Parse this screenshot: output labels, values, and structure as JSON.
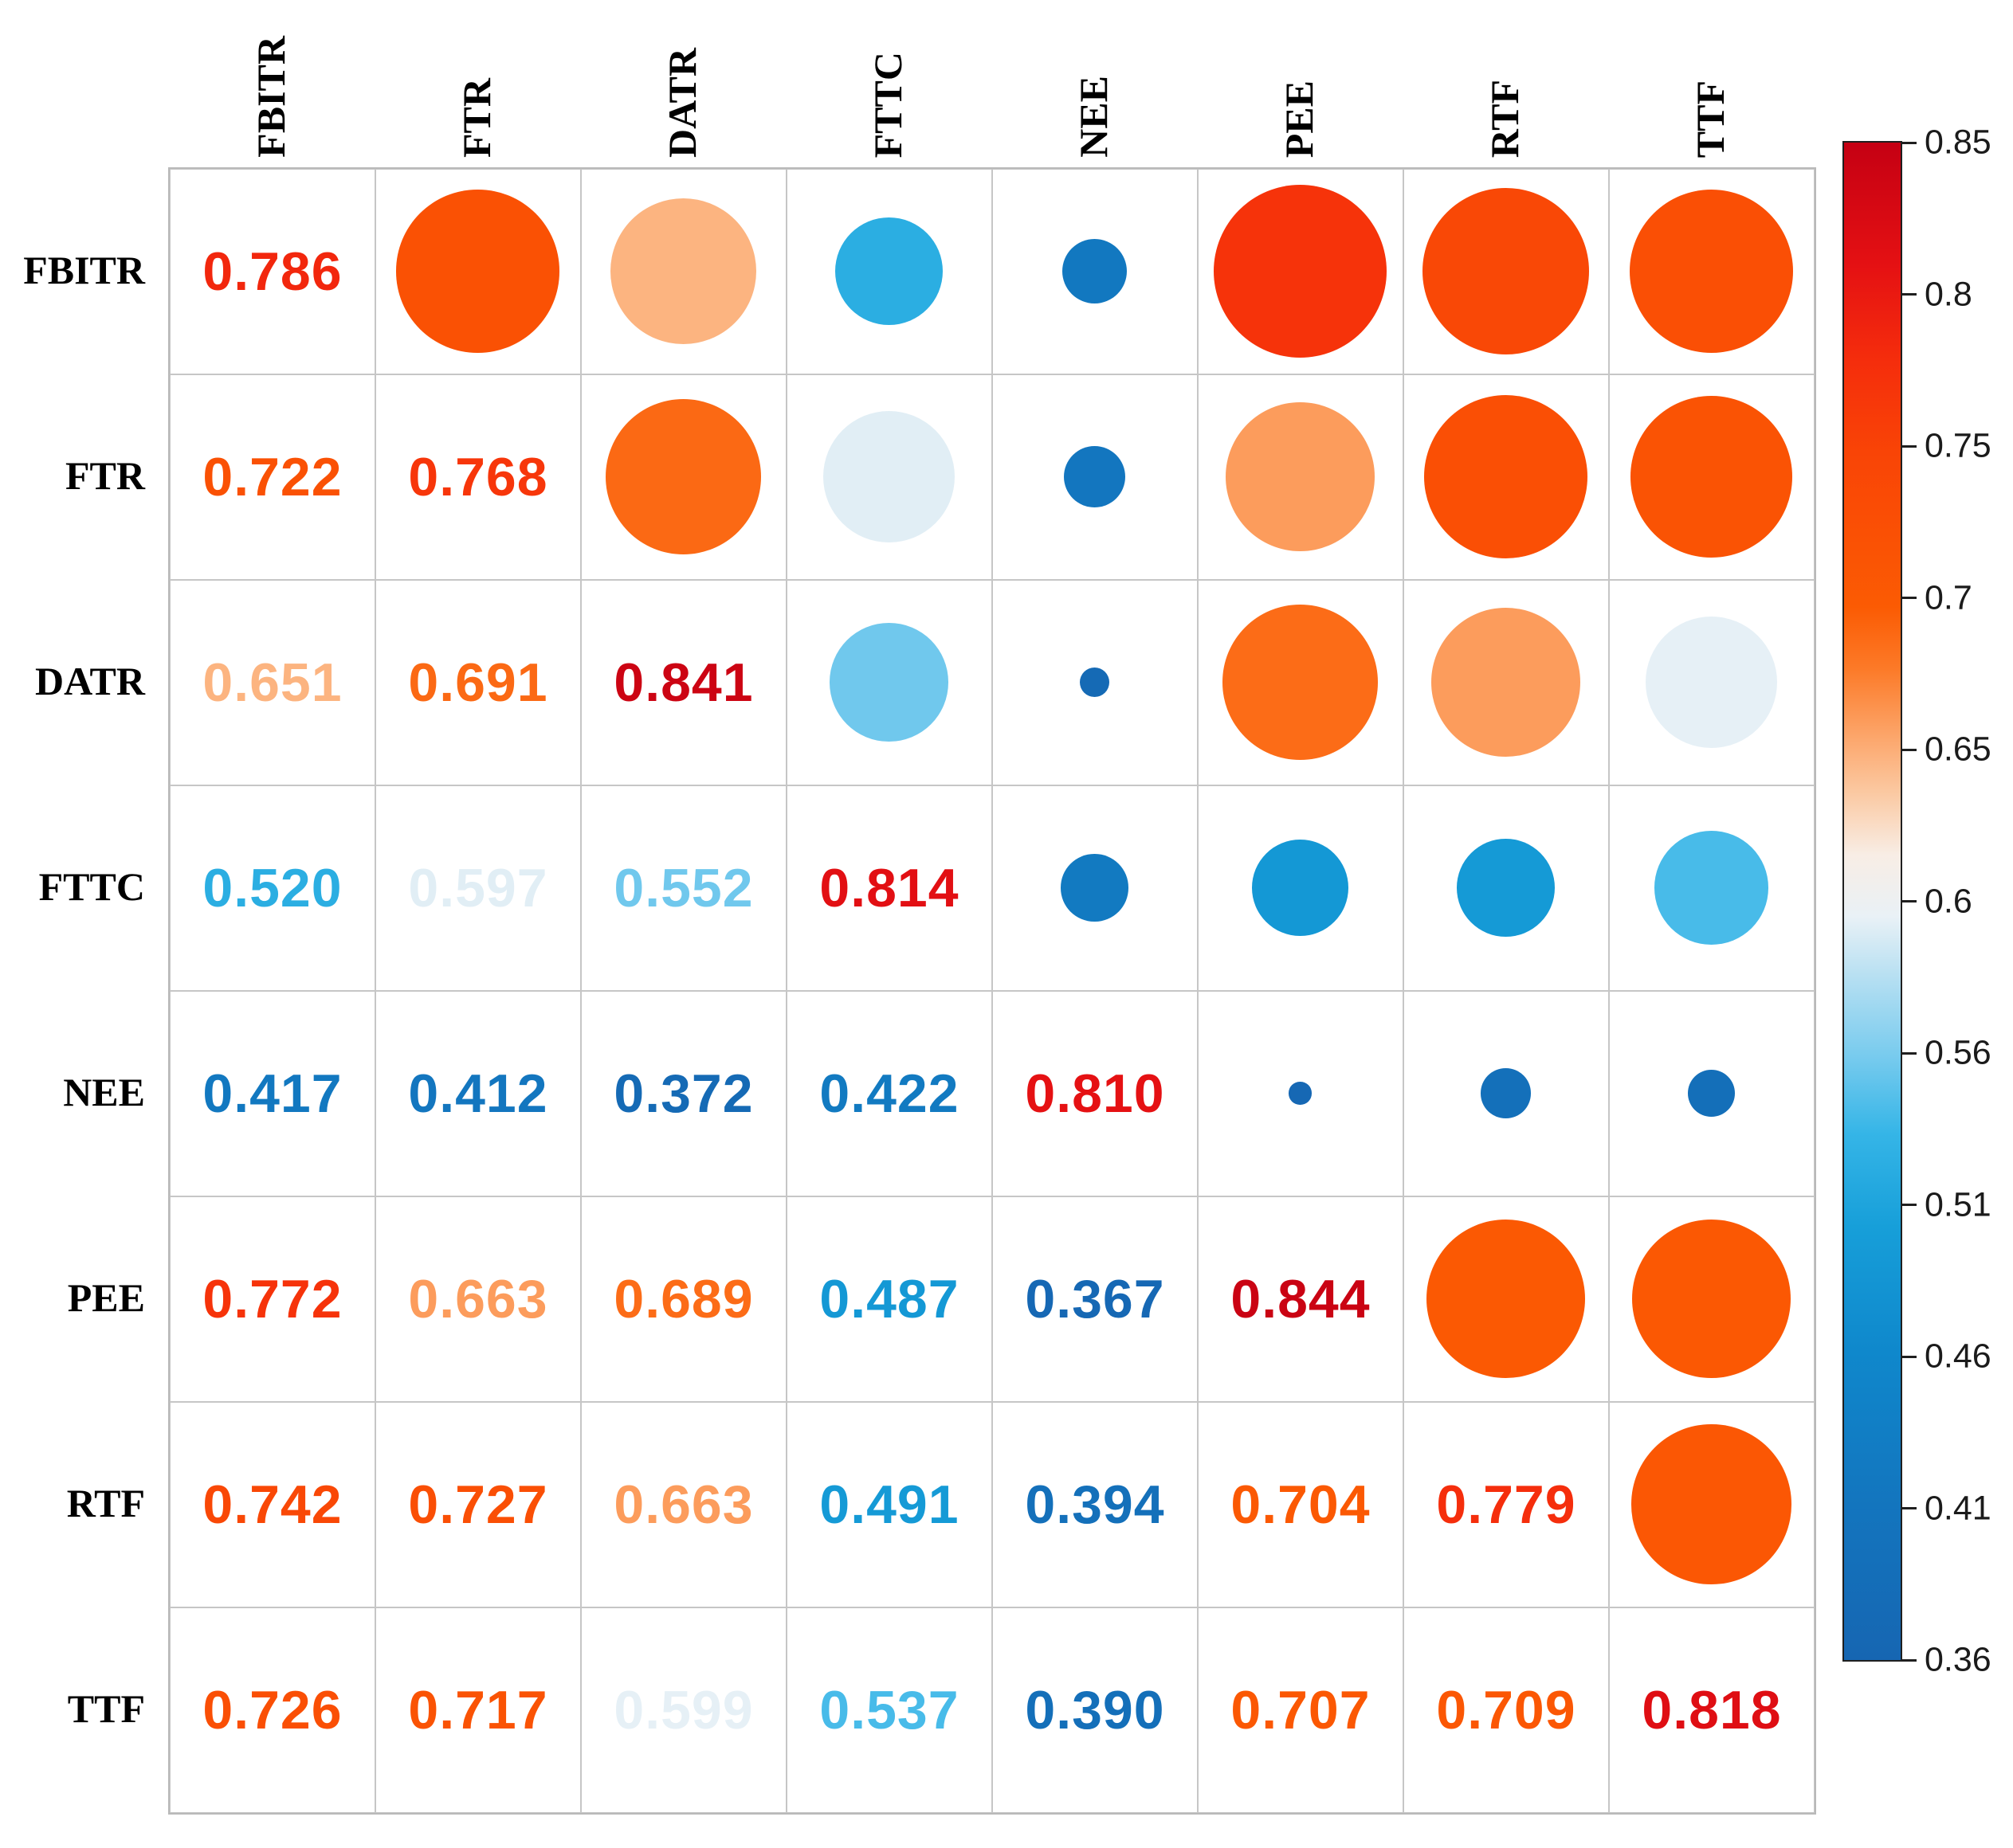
{
  "chart_data": {
    "type": "heatmap",
    "subtype": "correlation-matrix-bubble-plot",
    "title": "",
    "variables": [
      "FBITR",
      "FTR",
      "DATR",
      "FTTC",
      "NEE",
      "PEE",
      "RTF",
      "TTF"
    ],
    "matrix": [
      [
        0.786,
        0.722,
        0.651,
        0.52,
        0.417,
        0.772,
        0.742,
        0.726
      ],
      [
        0.722,
        0.768,
        0.691,
        0.597,
        0.412,
        0.663,
        0.727,
        0.717
      ],
      [
        0.651,
        0.691,
        0.841,
        0.552,
        0.372,
        0.689,
        0.663,
        0.599
      ],
      [
        0.52,
        0.597,
        0.552,
        0.814,
        0.422,
        0.487,
        0.491,
        0.537
      ],
      [
        0.417,
        0.412,
        0.372,
        0.422,
        0.81,
        0.367,
        0.394,
        0.39
      ],
      [
        0.772,
        0.663,
        0.689,
        0.487,
        0.367,
        0.844,
        0.704,
        0.707
      ],
      [
        0.742,
        0.727,
        0.663,
        0.491,
        0.394,
        0.704,
        0.779,
        0.709
      ],
      [
        0.726,
        0.717,
        0.599,
        0.537,
        0.39,
        0.707,
        0.709,
        0.818
      ]
    ],
    "display": {
      "lower_triangle": "numbers",
      "diagonal": "numbers",
      "upper_triangle": "circles",
      "value_format": "3-decimals",
      "circle_size_rule": "diameter proportional to sqrt((value-0.36)/0.49), max 92% of cell"
    },
    "grid": {
      "rows": 8,
      "cols": 8,
      "line_color": "#c6c6c6",
      "background": "#ffffff"
    },
    "colorbar": {
      "min": 0.36,
      "max": 0.85,
      "tick_labels": [
        "0.85",
        "0.8",
        "0.75",
        "0.7",
        "0.65",
        "0.6",
        "0.56",
        "0.51",
        "0.46",
        "0.41",
        "0.36"
      ],
      "position": "right"
    },
    "colormap_stops": [
      [
        0.36,
        "#1666B2"
      ],
      [
        0.41,
        "#1375BE"
      ],
      [
        0.46,
        "#0F88CC"
      ],
      [
        0.5,
        "#179FD9"
      ],
      [
        0.53,
        "#35B5E7"
      ],
      [
        0.555,
        "#78CBEE"
      ],
      [
        0.58,
        "#B5DFF2"
      ],
      [
        0.6,
        "#E9F1F6"
      ],
      [
        0.62,
        "#F8EDE5"
      ],
      [
        0.64,
        "#FBC9A2"
      ],
      [
        0.66,
        "#FCA265"
      ],
      [
        0.68,
        "#FC7A28"
      ],
      [
        0.7,
        "#FB5B03"
      ],
      [
        0.75,
        "#F94406"
      ],
      [
        0.78,
        "#F52D0C"
      ],
      [
        0.81,
        "#E51113"
      ],
      [
        0.85,
        "#C50013"
      ]
    ]
  }
}
